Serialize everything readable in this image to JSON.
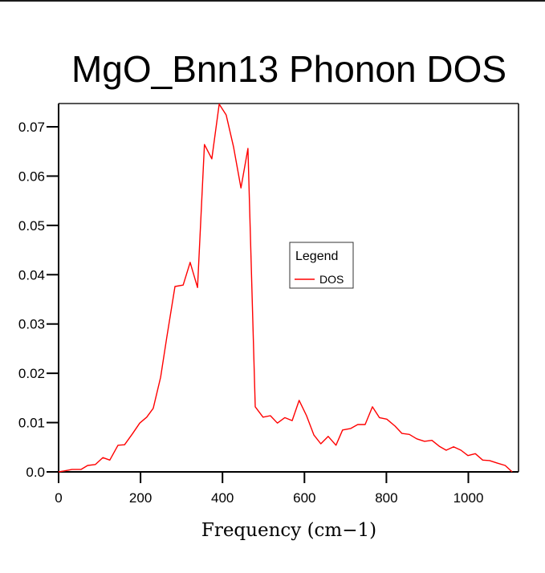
{
  "chart_data": {
    "type": "line",
    "title": "MgO_Bnn13 Phonon DOS",
    "xlabel": "Frequency (cm−1)",
    "ylabel": "",
    "xlim": [
      0,
      1125
    ],
    "ylim": [
      0,
      0.075
    ],
    "xticks": [
      0,
      200,
      400,
      600,
      800,
      1000
    ],
    "xtick_labels": [
      "0",
      "200",
      "400",
      "600",
      "800",
      "1000"
    ],
    "yticks": [
      0,
      0.01,
      0.02,
      0.03,
      0.04,
      0.05,
      0.06,
      0.07
    ],
    "ytick_labels": [
      "0.0",
      "0.01",
      "0.02",
      "0.03",
      "0.04",
      "0.05",
      "0.06",
      "0.07"
    ],
    "grid": false,
    "legend": {
      "title": "Legend",
      "placement": "center-right",
      "entries": [
        {
          "label": "DOS",
          "color": "#ff0000"
        }
      ]
    },
    "series": [
      {
        "name": "DOS",
        "color": "#ff0000",
        "x": [
          0,
          14,
          33,
          55,
          71,
          90,
          108,
          125,
          145,
          161,
          180,
          198,
          215,
          231,
          249,
          264,
          284,
          304,
          321,
          339,
          356,
          374,
          392,
          409,
          427,
          445,
          462,
          480,
          499,
          517,
          534,
          552,
          570,
          587,
          605,
          623,
          640,
          658,
          677,
          693,
          713,
          730,
          748,
          766,
          783,
          801,
          821,
          838,
          856,
          874,
          893,
          911,
          929,
          946,
          964,
          982,
          999,
          1017,
          1035,
          1052,
          1070,
          1090,
          1107
        ],
        "y": [
          0.0,
          0.0002,
          0.0005,
          0.0005,
          0.0013,
          0.0015,
          0.0029,
          0.0024,
          0.0054,
          0.0055,
          0.0077,
          0.0099,
          0.0111,
          0.0129,
          0.0192,
          0.0273,
          0.0376,
          0.0379,
          0.0425,
          0.0374,
          0.0664,
          0.0635,
          0.0746,
          0.0724,
          0.0659,
          0.0576,
          0.0656,
          0.0132,
          0.0111,
          0.0114,
          0.0099,
          0.011,
          0.0104,
          0.0145,
          0.0114,
          0.0075,
          0.0057,
          0.0072,
          0.0054,
          0.0085,
          0.0088,
          0.0096,
          0.0096,
          0.0132,
          0.011,
          0.0107,
          0.0093,
          0.0078,
          0.0076,
          0.0067,
          0.0062,
          0.0064,
          0.0052,
          0.0044,
          0.0051,
          0.0044,
          0.0033,
          0.0037,
          0.0024,
          0.0023,
          0.0018,
          0.0013,
          0.0
        ]
      }
    ]
  },
  "colors": {
    "line": "#ff0000",
    "axis": "#000000",
    "frame_top": "#555555",
    "background": "#ffffff"
  }
}
